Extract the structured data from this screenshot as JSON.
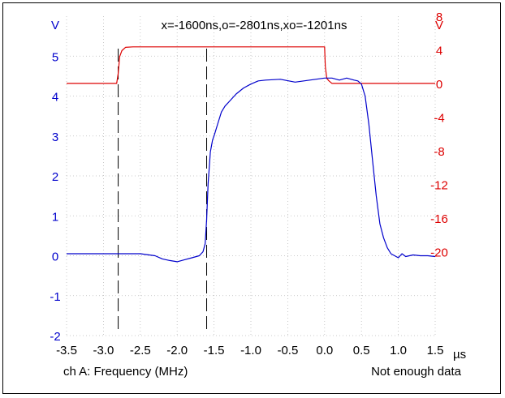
{
  "header": {
    "left_unit": "V",
    "right_unit": "V",
    "cursor_readout": "x=-1600ns,o=-2801ns,xo=-1201ns"
  },
  "footer": {
    "channel_label": "ch A: Frequency (MHz)",
    "status": "Not enough data"
  },
  "colors": {
    "left": "#0000cc",
    "right": "#dd0000",
    "grid": "#bbbbbb",
    "cursor": "#000000"
  },
  "chart_data": {
    "type": "line",
    "grid": true,
    "xlabel": "µs",
    "x_unit": "µs",
    "xlim": [
      -3.5,
      1.5
    ],
    "x_ticks": [
      -3.5,
      -3.0,
      -2.5,
      -2.0,
      -1.5,
      -1.0,
      -0.5,
      0.0,
      0.5,
      1.0,
      1.5
    ],
    "x_tick_labels": [
      "-3.5",
      "-3.0",
      "-2.5",
      "-2.0",
      "-1.5",
      "-1.0",
      "-0.5",
      "0.0",
      "0.5",
      "1.0",
      "1.5"
    ],
    "left_axis": {
      "unit": "V",
      "ylim": [
        -2,
        6
      ],
      "ticks": [
        -2,
        -1,
        0,
        1,
        2,
        3,
        4,
        5
      ],
      "tick_labels": [
        "-2",
        "-1",
        "0",
        "1",
        "2",
        "3",
        "4",
        "5"
      ]
    },
    "right_axis": {
      "unit": "V",
      "ylim": [
        -30,
        8
      ],
      "ticks": [
        8,
        4,
        0,
        -4,
        -8,
        -12,
        -16,
        -20
      ],
      "tick_labels": [
        "8",
        "4",
        "0",
        "-4",
        "-8",
        "-12",
        "-16",
        "-20"
      ]
    },
    "cursors": [
      {
        "x": -2.8,
        "style": "dashed"
      },
      {
        "x": -1.6,
        "style": "dashed"
      }
    ],
    "series": [
      {
        "axis": "right",
        "color": "#dd0000",
        "x": [
          -3.5,
          -2.82,
          -2.8,
          -2.78,
          -2.75,
          -2.7,
          -2.6,
          -2.0,
          -1.0,
          0.0,
          0.01,
          0.03,
          0.06,
          0.1,
          0.5,
          1.0,
          1.5
        ],
        "y": [
          0,
          0,
          1.2,
          3.2,
          3.9,
          4.3,
          4.35,
          4.35,
          4.35,
          4.35,
          2.0,
          0.6,
          0.3,
          0.0,
          0.0,
          0.0,
          0.0
        ]
      },
      {
        "axis": "left",
        "color": "#0000cc",
        "x": [
          -3.5,
          -3.0,
          -2.5,
          -2.3,
          -2.2,
          -2.1,
          -2.0,
          -1.9,
          -1.8,
          -1.7,
          -1.65,
          -1.62,
          -1.6,
          -1.58,
          -1.55,
          -1.52,
          -1.5,
          -1.45,
          -1.4,
          -1.35,
          -1.3,
          -1.2,
          -1.1,
          -1.0,
          -0.9,
          -0.8,
          -0.6,
          -0.4,
          -0.2,
          0.0,
          0.1,
          0.2,
          0.3,
          0.4,
          0.45,
          0.5,
          0.55,
          0.6,
          0.65,
          0.7,
          0.75,
          0.8,
          0.85,
          0.9,
          0.95,
          1.0,
          1.05,
          1.1,
          1.2,
          1.3,
          1.4,
          1.5
        ],
        "y": [
          0.05,
          0.05,
          0.05,
          0.0,
          -0.08,
          -0.12,
          -0.15,
          -0.1,
          -0.05,
          0.0,
          0.1,
          0.3,
          0.9,
          1.8,
          2.6,
          2.9,
          3.0,
          3.3,
          3.6,
          3.75,
          3.85,
          4.05,
          4.2,
          4.3,
          4.38,
          4.4,
          4.42,
          4.35,
          4.4,
          4.45,
          4.45,
          4.4,
          4.45,
          4.4,
          4.38,
          4.3,
          4.0,
          3.3,
          2.4,
          1.5,
          0.8,
          0.45,
          0.2,
          0.05,
          0.0,
          -0.05,
          0.05,
          -0.02,
          0.02,
          0.0,
          0.0,
          -0.02
        ]
      }
    ]
  }
}
